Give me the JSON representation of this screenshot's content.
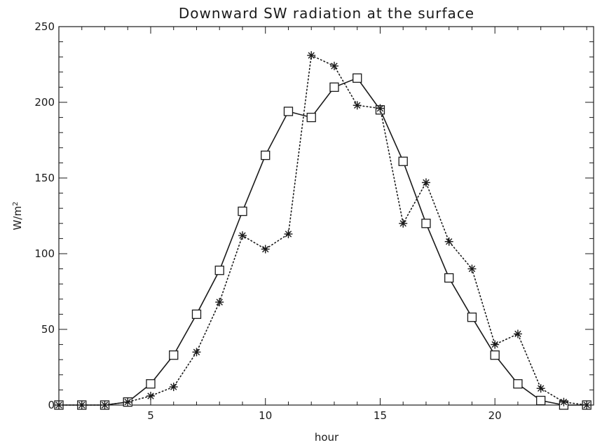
{
  "chart_data": {
    "type": "line",
    "title": "Downward SW radiation at the surface",
    "xlabel": "hour",
    "ylabel_base": "W/m",
    "ylabel_sup": "2",
    "xlim": [
      1,
      24.3
    ],
    "ylim": [
      0,
      250
    ],
    "xticks": [
      5,
      10,
      15,
      20
    ],
    "yticks": [
      0,
      50,
      100,
      150,
      200,
      250
    ],
    "grid": false,
    "series": [
      {
        "marker": "square",
        "line": "solid",
        "x": [
          1,
          2,
          3,
          4,
          5,
          6,
          7,
          8,
          9,
          10,
          11,
          12,
          13,
          14,
          15,
          16,
          17,
          18,
          19,
          20,
          21,
          22,
          23,
          24
        ],
        "values": [
          0,
          0,
          0,
          2,
          14,
          33,
          60,
          89,
          128,
          165,
          194,
          190,
          210,
          216,
          195,
          161,
          120,
          84,
          58,
          33,
          14,
          3,
          0,
          0
        ]
      },
      {
        "marker": "asterisk",
        "line": "dotted",
        "x": [
          1,
          2,
          3,
          4,
          5,
          6,
          7,
          8,
          9,
          10,
          11,
          12,
          13,
          14,
          15,
          16,
          17,
          18,
          19,
          20,
          21,
          22,
          23,
          24
        ],
        "values": [
          0,
          0,
          0,
          2,
          6,
          12,
          35,
          68,
          112,
          103,
          113,
          231,
          224,
          198,
          196,
          120,
          147,
          108,
          90,
          40,
          47,
          11,
          2,
          0
        ]
      }
    ]
  }
}
